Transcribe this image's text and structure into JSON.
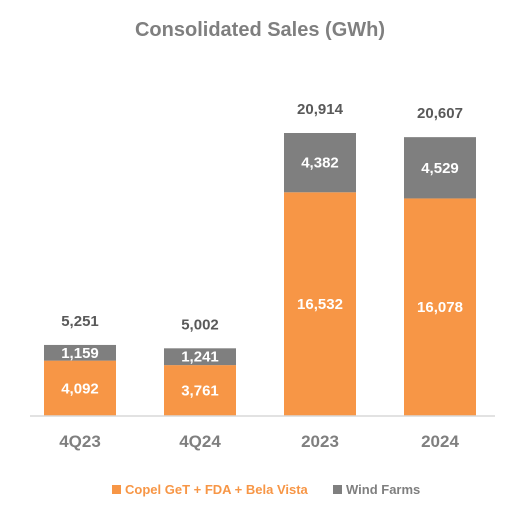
{
  "chart_data": {
    "type": "bar",
    "stacked": true,
    "title": "Consolidated  Sales (GWh)",
    "categories": [
      "4Q23",
      "4Q24",
      "2023",
      "2024"
    ],
    "series": [
      {
        "name": "Copel GeT + FDA + Bela Vista",
        "color": "#f79646",
        "values": [
          4092,
          3761,
          16532,
          16078
        ]
      },
      {
        "name": "Wind Farms",
        "color": "#7f7f7f",
        "values": [
          1159,
          1241,
          4382,
          4529
        ]
      }
    ],
    "totals": [
      5251,
      5002,
      20914,
      20607
    ],
    "display": {
      "segment_labels": [
        [
          "4,092",
          "3,761",
          "16,532",
          "16,078"
        ],
        [
          "1,159",
          "1,241",
          "4,382",
          "4,529"
        ]
      ],
      "total_labels": [
        "5,251",
        "5,002",
        "20,914",
        "20,607"
      ]
    },
    "grid": false,
    "legend": "bottom",
    "axis_line_color": "#d9d9d9",
    "text_color": "#595959",
    "title_color": "#7f7f7f"
  }
}
